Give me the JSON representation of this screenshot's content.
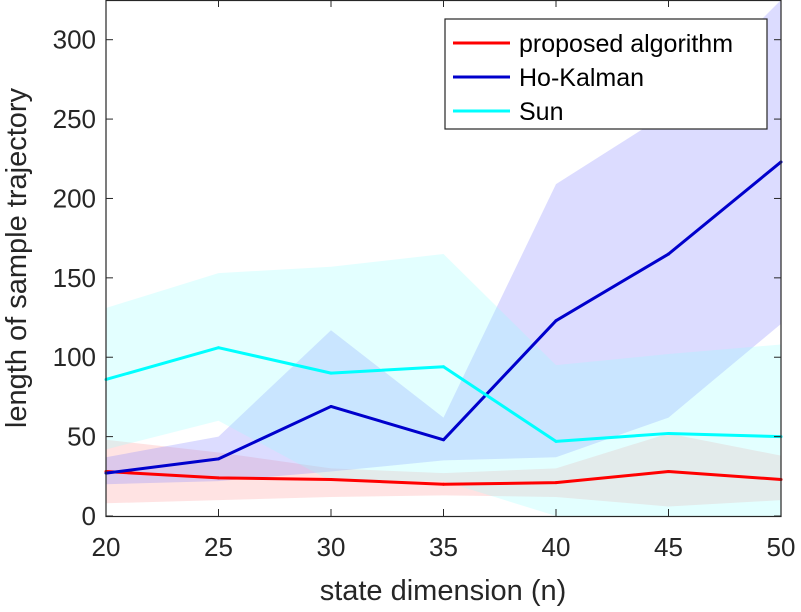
{
  "chart_data": {
    "type": "line",
    "title": "",
    "xlabel": "state dimension (n)",
    "ylabel": "length of sample trajectory",
    "x": [
      20,
      25,
      30,
      35,
      40,
      45,
      50
    ],
    "xlim": [
      20,
      50
    ],
    "ylim": [
      0,
      325
    ],
    "xticks": [
      "20",
      "25",
      "30",
      "35",
      "40",
      "45",
      "50"
    ],
    "yticks": [
      "0",
      "50",
      "100",
      "150",
      "200",
      "250",
      "300"
    ],
    "xtick_values": [
      20,
      25,
      30,
      35,
      40,
      45,
      50
    ],
    "ytick_values": [
      0,
      50,
      100,
      150,
      200,
      250,
      300
    ],
    "legend_position": "top-right",
    "series": [
      {
        "name": "proposed algorithm",
        "color": "#ff0000",
        "band_color": "#ff9999",
        "values": [
          28,
          24,
          23,
          20,
          21,
          28,
          23
        ],
        "band_upper": [
          48,
          40,
          30,
          27,
          30,
          52,
          38
        ],
        "band_lower": [
          8,
          10,
          12,
          13,
          12,
          6,
          10
        ]
      },
      {
        "name": "Ho-Kalman",
        "color": "#0000cc",
        "band_color": "#8080ff",
        "values": [
          27,
          36,
          69,
          48,
          123,
          165,
          223
        ],
        "band_upper": [
          37,
          50,
          117,
          62,
          209,
          254,
          325
        ],
        "band_lower": [
          20,
          22,
          28,
          35,
          37,
          62,
          121
        ]
      },
      {
        "name": "Sun",
        "color": "#00ffff",
        "band_color": "#99ffff",
        "values": [
          86,
          106,
          90,
          94,
          47,
          52,
          50
        ],
        "band_upper": [
          131,
          153,
          157,
          165,
          95,
          102,
          108
        ],
        "band_lower": [
          42,
          60,
          22,
          22,
          0,
          0,
          0
        ]
      }
    ]
  }
}
